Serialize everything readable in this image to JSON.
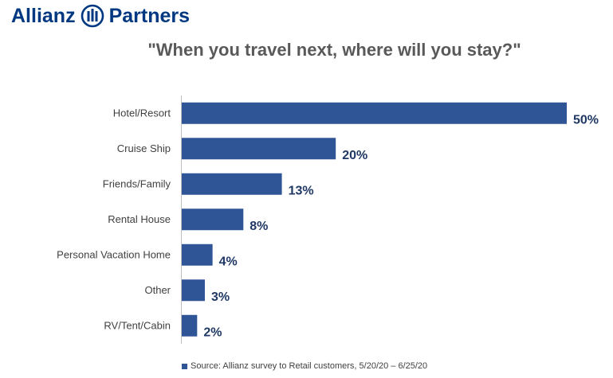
{
  "brand": {
    "name_left": "Allianz",
    "name_right": "Partners",
    "logo_color": "#003781"
  },
  "source_note": "Source: Allianz survey to Retail customers, 5/20/20 – 6/25/20",
  "chart_data": {
    "type": "bar",
    "orientation": "horizontal",
    "title": "\"When you travel next, where will you stay?\"",
    "categories": [
      "Hotel/Resort",
      "Cruise Ship",
      "Friends/Family",
      "Rental House",
      "Personal Vacation Home",
      "Other",
      "RV/Tent/Cabin"
    ],
    "values": [
      50,
      20,
      13,
      8,
      4,
      3,
      2
    ],
    "value_labels": [
      "50%",
      "20%",
      "13%",
      "8%",
      "4%",
      "3%",
      "2%"
    ],
    "unit": "%",
    "xlim": [
      0,
      50
    ],
    "grid": false,
    "bar_color": "#2F5597",
    "label_color": "#1F3864",
    "category_color": "#404040"
  }
}
